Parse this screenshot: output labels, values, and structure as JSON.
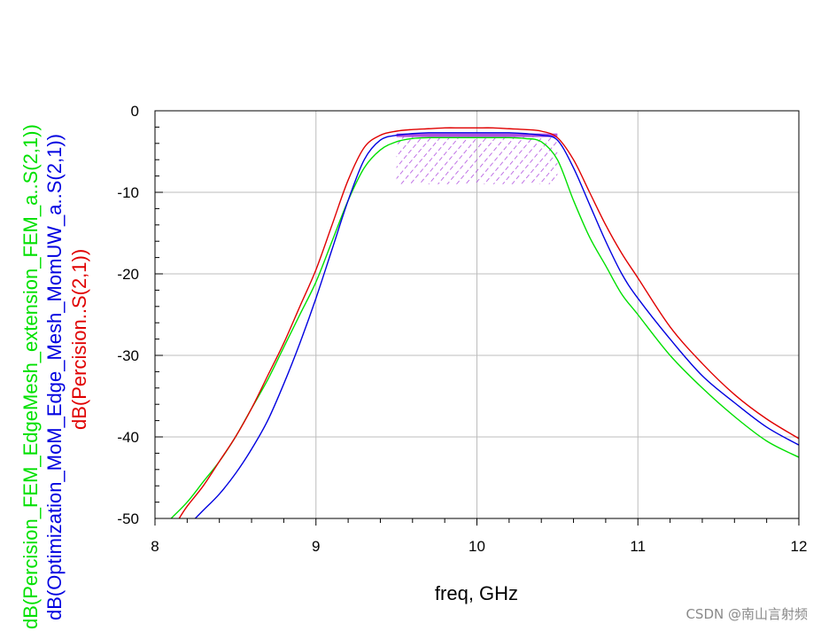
{
  "chart_data": {
    "type": "line",
    "xlabel": "freq, GHz",
    "xlim": [
      8,
      12
    ],
    "ylim": [
      -50,
      0
    ],
    "x_ticks": [
      8,
      9,
      10,
      11,
      12
    ],
    "y_ticks": [
      0,
      -10,
      -20,
      -30,
      -40,
      -50
    ],
    "grid": true,
    "series": [
      {
        "name": "dB(Percision_FEM_EdgeMesh_extension_FEM_a..S(2,1))",
        "color": "#00e000",
        "x": [
          8.1,
          8.2,
          8.3,
          8.4,
          8.5,
          8.6,
          8.7,
          8.8,
          8.9,
          9.0,
          9.1,
          9.2,
          9.3,
          9.4,
          9.5,
          9.6,
          9.7,
          9.8,
          9.9,
          10.0,
          10.1,
          10.2,
          10.3,
          10.4,
          10.5,
          10.6,
          10.7,
          10.8,
          10.9,
          11.0,
          11.2,
          11.4,
          11.6,
          11.8,
          12.0
        ],
        "y": [
          -50,
          -48,
          -45.5,
          -43,
          -40,
          -36.5,
          -33,
          -29,
          -25,
          -21,
          -16,
          -11,
          -7,
          -4.8,
          -3.8,
          -3.4,
          -3.3,
          -3.3,
          -3.3,
          -3.3,
          -3.3,
          -3.3,
          -3.4,
          -3.8,
          -6,
          -11,
          -15.5,
          -19,
          -22.5,
          -25,
          -30,
          -34,
          -37.5,
          -40.5,
          -42.5
        ]
      },
      {
        "name": "dB(Optimization_MoM_Edge_Mesh_MomUW_a..S(2,1))",
        "color": "#0000e0",
        "x": [
          8.25,
          8.3,
          8.4,
          8.5,
          8.6,
          8.7,
          8.8,
          8.9,
          9.0,
          9.1,
          9.2,
          9.3,
          9.4,
          9.5,
          9.6,
          9.7,
          9.8,
          9.9,
          10.0,
          10.1,
          10.2,
          10.3,
          10.4,
          10.5,
          10.6,
          10.7,
          10.8,
          10.9,
          11.0,
          11.2,
          11.4,
          11.6,
          11.8,
          12.0
        ],
        "y": [
          -50,
          -49,
          -47,
          -44.5,
          -41.5,
          -38,
          -33.5,
          -28.5,
          -23,
          -17,
          -11,
          -6,
          -3.6,
          -3.0,
          -2.8,
          -2.7,
          -2.7,
          -2.7,
          -2.7,
          -2.7,
          -2.7,
          -2.8,
          -3.0,
          -3.6,
          -7,
          -11.5,
          -16,
          -20,
          -23,
          -28,
          -32.5,
          -35.8,
          -38.8,
          -41
        ]
      },
      {
        "name": "dB(Percision..S(2,1))",
        "color": "#e00000",
        "x": [
          8.15,
          8.2,
          8.3,
          8.4,
          8.5,
          8.6,
          8.7,
          8.8,
          8.9,
          9.0,
          9.1,
          9.2,
          9.3,
          9.4,
          9.5,
          9.6,
          9.7,
          9.8,
          9.9,
          10.0,
          10.1,
          10.2,
          10.3,
          10.4,
          10.5,
          10.6,
          10.7,
          10.8,
          10.9,
          11.0,
          11.2,
          11.4,
          11.6,
          11.8,
          12.0
        ],
        "y": [
          -50,
          -48.5,
          -46,
          -43,
          -40,
          -36.5,
          -32.5,
          -28.5,
          -24,
          -19.5,
          -14,
          -8.5,
          -4.5,
          -3.0,
          -2.5,
          -2.3,
          -2.2,
          -2.1,
          -2.1,
          -2.1,
          -2.1,
          -2.2,
          -2.3,
          -2.5,
          -3.3,
          -6,
          -10,
          -14,
          -17.5,
          -20.5,
          -26.5,
          -31,
          -34.8,
          -37.8,
          -40.2
        ]
      }
    ],
    "goal_mask": {
      "color": "#b050e0",
      "x_range": [
        9.5,
        10.5
      ],
      "y_range": [
        -9,
        -3
      ]
    }
  },
  "watermark": "CSDN @南山言射频"
}
